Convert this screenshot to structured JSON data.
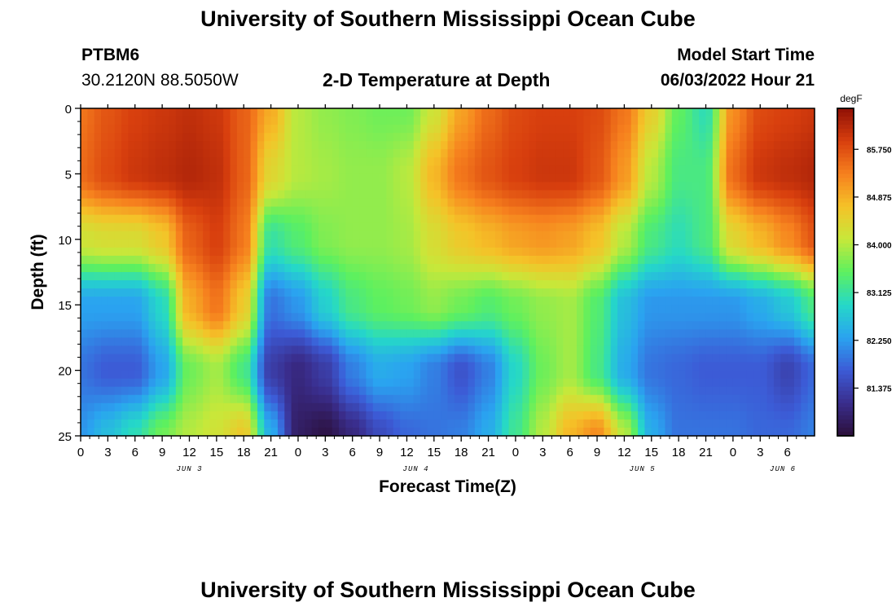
{
  "page": {
    "title": "University of Southern Mississippi Ocean Cube",
    "footer_title": "University of Southern Mississippi Ocean Cube",
    "station_name": "PTBM6",
    "coordinates": "30.2120N  88.5050W",
    "chart_title": "2-D Temperature at Depth",
    "model_start_label": "Model Start Time",
    "model_start_value": "06/03/2022 Hour 21"
  },
  "colors": {
    "background": "#ffffff",
    "axis": "#000000",
    "scale": [
      "#2b0f3a",
      "#3a2d8c",
      "#3c5bd6",
      "#2aa3f0",
      "#25d8c8",
      "#5df05f",
      "#c7e83a",
      "#f5c228",
      "#f6801e",
      "#d83f0e",
      "#8f1006"
    ]
  },
  "chart_data": {
    "type": "heatmap",
    "title": "2-D Temperature at Depth",
    "xlabel": "Forecast Time(Z)",
    "ylabel": "Depth (ft)",
    "colorbar_label": "degF",
    "colorbar_ticks": [
      "85.750",
      "84.875",
      "84.000",
      "83.125",
      "82.250",
      "81.375"
    ],
    "colorbar_tick_values": [
      85.75,
      84.875,
      84.0,
      83.125,
      82.25,
      81.375
    ],
    "color_range": [
      80.5,
      86.5
    ],
    "x_range": [
      0,
      81
    ],
    "x_tick_step": 3,
    "x_tick_labels": [
      "0",
      "3",
      "6",
      "9",
      "12",
      "15",
      "18",
      "21",
      "0",
      "3",
      "6",
      "9",
      "12",
      "15",
      "18",
      "21",
      "0",
      "3",
      "6",
      "9",
      "12",
      "15",
      "18",
      "21",
      "0",
      "3",
      "6"
    ],
    "date_labels": [
      {
        "text": "JUN 3",
        "hour": 12
      },
      {
        "text": "JUN 4",
        "hour": 37
      },
      {
        "text": "JUN 5",
        "hour": 62
      },
      {
        "text": "JUN 6",
        "hour": 77.5
      }
    ],
    "y_range": [
      0,
      25
    ],
    "y_tick_labels": [
      "0",
      "5",
      "10",
      "15",
      "20",
      "25"
    ],
    "y_tick_values": [
      0,
      5,
      10,
      15,
      20,
      25
    ],
    "time_nodes": [
      0,
      3,
      6,
      9,
      12,
      15,
      18,
      21,
      24,
      27,
      30,
      33,
      36,
      39,
      42,
      45,
      48,
      51,
      54,
      57,
      60,
      63,
      66,
      69,
      72,
      75,
      78,
      81
    ],
    "depth_nodes": [
      0,
      5,
      10,
      15,
      20,
      25
    ],
    "values": [
      [
        85.4,
        85.7,
        85.9,
        86.0,
        86.1,
        86.0,
        85.6,
        84.9,
        84.0,
        83.8,
        83.7,
        83.6,
        83.6,
        84.2,
        85.0,
        85.5,
        85.8,
        85.9,
        85.9,
        85.8,
        85.4,
        84.5,
        83.5,
        83.0,
        85.2,
        85.8,
        85.9,
        86.0
      ],
      [
        85.5,
        85.8,
        86.0,
        86.1,
        86.2,
        86.1,
        85.6,
        84.4,
        84.0,
        83.9,
        83.8,
        83.8,
        84.0,
        84.8,
        85.4,
        85.7,
        85.9,
        86.0,
        86.0,
        85.7,
        85.1,
        84.0,
        83.3,
        83.3,
        85.5,
        86.0,
        86.1,
        86.2
      ],
      [
        84.2,
        84.3,
        84.3,
        84.6,
        85.6,
        85.9,
        85.4,
        83.1,
        83.4,
        83.7,
        83.8,
        83.8,
        83.9,
        84.3,
        84.6,
        84.8,
        85.0,
        85.1,
        85.0,
        84.7,
        84.0,
        83.3,
        83.0,
        83.3,
        84.4,
        84.8,
        85.2,
        85.7
      ],
      [
        82.3,
        82.3,
        82.3,
        82.9,
        84.9,
        85.4,
        84.6,
        81.9,
        82.2,
        82.8,
        83.3,
        83.5,
        83.6,
        83.8,
        83.6,
        83.4,
        83.6,
        83.8,
        83.9,
        83.4,
        82.6,
        82.2,
        82.2,
        82.2,
        82.2,
        82.4,
        82.7,
        83.3
      ],
      [
        81.9,
        81.7,
        81.7,
        82.3,
        83.6,
        83.9,
        83.3,
        81.3,
        81.0,
        81.3,
        82.0,
        82.4,
        82.3,
        82.0,
        81.6,
        82.0,
        82.9,
        83.6,
        83.9,
        83.3,
        82.4,
        81.9,
        81.8,
        81.7,
        81.7,
        81.7,
        81.4,
        81.8
      ],
      [
        82.2,
        82.6,
        83.0,
        83.6,
        84.0,
        84.2,
        84.6,
        82.4,
        80.8,
        80.6,
        81.0,
        81.5,
        81.8,
        81.9,
        82.0,
        82.4,
        83.2,
        84.0,
        84.8,
        85.2,
        84.0,
        82.4,
        81.9,
        81.9,
        81.9,
        81.8,
        81.8,
        82.0
      ]
    ]
  }
}
